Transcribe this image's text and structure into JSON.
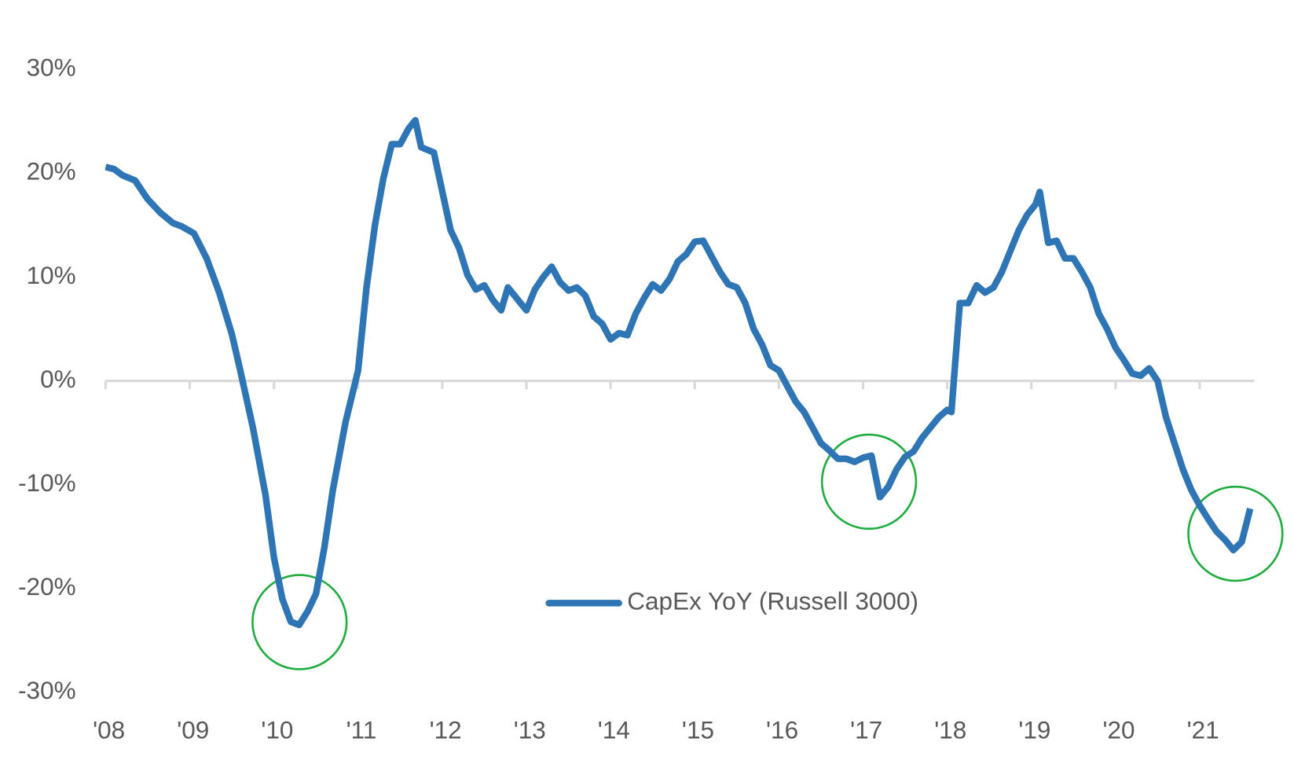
{
  "chart_data": {
    "type": "line",
    "x": [
      2008.0,
      2008.1,
      2008.2,
      2008.35,
      2008.5,
      2008.65,
      2008.8,
      2008.9,
      2009.05,
      2009.2,
      2009.35,
      2009.5,
      2009.6,
      2009.75,
      2009.9,
      2010.0,
      2010.1,
      2010.2,
      2010.3,
      2010.4,
      2010.5,
      2010.6,
      2010.7,
      2010.85,
      2011.0,
      2011.1,
      2011.2,
      2011.3,
      2011.4,
      2011.5,
      2011.6,
      2011.68,
      2011.75,
      2011.9,
      2012.1,
      2012.2,
      2012.3,
      2012.4,
      2012.5,
      2012.6,
      2012.7,
      2012.78,
      2012.9,
      2013.0,
      2013.1,
      2013.2,
      2013.3,
      2013.4,
      2013.5,
      2013.6,
      2013.7,
      2013.8,
      2013.9,
      2014.0,
      2014.1,
      2014.2,
      2014.3,
      2014.4,
      2014.5,
      2014.6,
      2014.7,
      2014.8,
      2014.9,
      2015.0,
      2015.1,
      2015.2,
      2015.3,
      2015.4,
      2015.5,
      2015.6,
      2015.7,
      2015.8,
      2015.9,
      2016.0,
      2016.1,
      2016.2,
      2016.3,
      2016.4,
      2016.5,
      2016.6,
      2016.7,
      2016.8,
      2016.9,
      2017.0,
      2017.1,
      2017.2,
      2017.3,
      2017.4,
      2017.5,
      2017.6,
      2017.7,
      2017.8,
      2017.9,
      2018.0,
      2018.05,
      2018.15,
      2018.25,
      2018.35,
      2018.45,
      2018.55,
      2018.65,
      2018.75,
      2018.85,
      2018.95,
      2019.05,
      2019.1,
      2019.2,
      2019.3,
      2019.4,
      2019.5,
      2019.6,
      2019.7,
      2019.8,
      2019.9,
      2020.0,
      2020.1,
      2020.2,
      2020.3,
      2020.4,
      2020.5,
      2020.6,
      2020.7,
      2020.8,
      2020.9,
      2021.0,
      2021.1,
      2021.2,
      2021.3,
      2021.4,
      2021.5,
      2021.6
    ],
    "series": [
      {
        "name": "CapEx YoY (Russell 3000)",
        "color": "#2e75b6",
        "values": [
          20.6,
          20.4,
          19.8,
          19.3,
          17.5,
          16.2,
          15.2,
          14.9,
          14.2,
          11.8,
          8.5,
          4.5,
          1,
          -4.5,
          -11,
          -17,
          -21,
          -23.2,
          -23.5,
          -22.2,
          -20.5,
          -16,
          -10.5,
          -4,
          1,
          9,
          15,
          19.5,
          22.8,
          22.8,
          24.3,
          25.1,
          22.5,
          22.0,
          14.5,
          12.8,
          10.2,
          8.8,
          9.2,
          7.8,
          6.8,
          9.0,
          7.8,
          6.8,
          8.8,
          10,
          11,
          9.5,
          8.7,
          9.0,
          8.2,
          6.2,
          5.5,
          4,
          4.6,
          4.4,
          6.5,
          8,
          9.3,
          8.7,
          9.8,
          11.5,
          12.2,
          13.4,
          13.5,
          12,
          10.5,
          9.3,
          9,
          7.5,
          5,
          3.5,
          1.5,
          1,
          -0.5,
          -2,
          -3,
          -4.5,
          -6,
          -6.7,
          -7.5,
          -7.5,
          -7.8,
          -7.4,
          -7.2,
          -11.2,
          -10.2,
          -8.5,
          -7.3,
          -6.8,
          -5.5,
          -4.5,
          -3.5,
          -2.8,
          -3,
          7.5,
          7.5,
          9.2,
          8.5,
          9.0,
          10.5,
          12.5,
          14.5,
          16,
          17,
          18.2,
          13.3,
          13.5,
          11.8,
          11.8,
          10.5,
          9,
          6.5,
          5,
          3.2,
          2,
          0.7,
          0.5,
          1.2,
          0,
          -3.5,
          -6,
          -8.5,
          -10.5,
          -12,
          -13.3,
          -14.5,
          -15.3,
          -16.3,
          -15.5,
          -12.3
        ]
      }
    ],
    "xlim": [
      2008,
      2021.65
    ],
    "xticks": [
      {
        "value": 2008,
        "label": "'08"
      },
      {
        "value": 2009,
        "label": "'09"
      },
      {
        "value": 2010,
        "label": "'10"
      },
      {
        "value": 2011,
        "label": "'11"
      },
      {
        "value": 2012,
        "label": "'12"
      },
      {
        "value": 2013,
        "label": "'13"
      },
      {
        "value": 2014,
        "label": "'14"
      },
      {
        "value": 2015,
        "label": "'15"
      },
      {
        "value": 2016,
        "label": "'16"
      },
      {
        "value": 2017,
        "label": "'17"
      },
      {
        "value": 2018,
        "label": "'18"
      },
      {
        "value": 2019,
        "label": "'19"
      },
      {
        "value": 2020,
        "label": "'20"
      },
      {
        "value": 2021,
        "label": "'21"
      }
    ],
    "ylim": [
      -30,
      30
    ],
    "yticks": [
      {
        "value": -30,
        "label": "-30%"
      },
      {
        "value": -20,
        "label": "-20%"
      },
      {
        "value": -10,
        "label": "-10%"
      },
      {
        "value": 0,
        "label": "0%"
      },
      {
        "value": 10,
        "label": "10%"
      },
      {
        "value": 20,
        "label": "20%"
      },
      {
        "value": 30,
        "label": "30%"
      }
    ],
    "grid": false
  }
}
